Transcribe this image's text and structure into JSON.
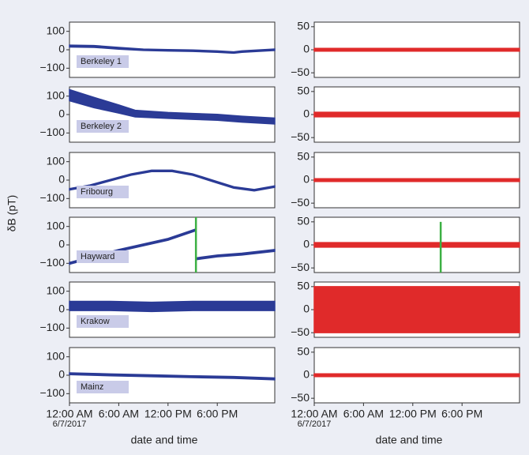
{
  "chart_data": [
    {
      "type": "line",
      "ylabel": "δB (pT)",
      "xlabel": "date and time",
      "date_note": "6/7/2017",
      "xlim": [
        0,
        25
      ],
      "xticks": [
        {
          "value": 0,
          "label": "12:00 AM"
        },
        {
          "value": 6,
          "label": "6:00 AM"
        },
        {
          "value": 12,
          "label": "12:00 PM"
        },
        {
          "value": 18,
          "label": "6:00 PM"
        }
      ],
      "ylim": [
        -150,
        150
      ],
      "yticks": [
        {
          "value": -100,
          "label": "−100"
        },
        0,
        100
      ],
      "series": [
        {
          "name": "Berkeley 1",
          "color": "#2b3b96",
          "x": [
            0,
            3,
            6,
            9,
            12,
            15,
            18,
            20,
            21,
            25
          ],
          "values": [
            20,
            18,
            8,
            0,
            -3,
            -5,
            -10,
            -15,
            -10,
            0
          ],
          "spread": [
            5,
            5,
            5,
            4,
            4,
            4,
            4,
            4,
            4,
            4
          ]
        },
        {
          "name": "Berkeley 2",
          "color": "#2b3b96",
          "x": [
            0,
            3,
            6,
            8,
            12,
            15,
            18,
            21,
            25
          ],
          "values": [
            105,
            65,
            30,
            5,
            -5,
            -10,
            -15,
            -25,
            -35
          ],
          "spread": [
            30,
            28,
            22,
            18,
            16,
            16,
            16,
            16,
            16
          ]
        },
        {
          "name": "Fribourg",
          "color": "#2b3b96",
          "x": [
            0,
            2.5,
            5,
            7.5,
            10,
            12.5,
            15,
            17.5,
            20,
            22.5,
            25
          ],
          "values": [
            -50,
            -30,
            0,
            30,
            50,
            50,
            30,
            -5,
            -40,
            -55,
            -35
          ],
          "spread": [
            4,
            4,
            4,
            4,
            4,
            4,
            4,
            4,
            4,
            4,
            4
          ]
        },
        {
          "name": "Hayward",
          "color": "#2b3b96",
          "x": [
            0,
            3,
            6,
            9,
            12,
            15.3,
            15.4,
            15.5,
            18,
            21,
            25
          ],
          "values": [
            -100,
            -65,
            -30,
            0,
            30,
            80,
            null,
            -75,
            -60,
            -50,
            -30
          ],
          "spread": [
            5,
            5,
            5,
            5,
            5,
            5,
            null,
            5,
            5,
            5,
            5
          ],
          "spike_x": 15.4,
          "spike_range": [
            -150,
            150
          ],
          "spike_color": "#3cb043"
        },
        {
          "name": "Krakow",
          "color": "#2b3b96",
          "x": [
            0,
            5,
            10,
            15,
            20,
            25
          ],
          "values": [
            20,
            20,
            15,
            20,
            20,
            20
          ],
          "spread": [
            25,
            25,
            25,
            25,
            25,
            25
          ]
        },
        {
          "name": "Mainz",
          "color": "#2b3b96",
          "x": [
            0,
            5,
            10,
            15,
            20,
            25
          ],
          "values": [
            8,
            2,
            -3,
            -8,
            -12,
            -20
          ],
          "spread": [
            5,
            5,
            5,
            5,
            5,
            5
          ]
        }
      ]
    },
    {
      "type": "line",
      "xlabel": "date and time",
      "date_note": "6/7/2017",
      "xlim": [
        0,
        25
      ],
      "xticks": [
        {
          "value": 0,
          "label": "12:00 AM"
        },
        {
          "value": 6,
          "label": "6:00 AM"
        },
        {
          "value": 12,
          "label": "12:00 PM"
        },
        {
          "value": 18,
          "label": "6:00 PM"
        }
      ],
      "ylim": [
        -60,
        60
      ],
      "yticks": [
        {
          "value": -50,
          "label": "−50"
        },
        0,
        50
      ],
      "series": [
        {
          "color": "#e02a2a",
          "x": [
            0,
            25
          ],
          "values": [
            0,
            0
          ],
          "spread": [
            3,
            3
          ]
        },
        {
          "color": "#e02a2a",
          "x": [
            0,
            25
          ],
          "values": [
            0,
            0
          ],
          "spread": [
            5,
            5
          ]
        },
        {
          "color": "#e02a2a",
          "x": [
            0,
            25
          ],
          "values": [
            0,
            0
          ],
          "spread": [
            3,
            3
          ]
        },
        {
          "color": "#e02a2a",
          "x": [
            0,
            25
          ],
          "values": [
            0,
            0
          ],
          "spread": [
            5,
            5
          ],
          "spike_x": 15.4,
          "spike_range": [
            -60,
            50
          ],
          "spike_color": "#3cb043"
        },
        {
          "color": "#e02a2a",
          "x": [
            0,
            25
          ],
          "values": [
            0,
            0
          ],
          "spread": [
            50,
            50
          ]
        },
        {
          "color": "#e02a2a",
          "x": [
            0,
            25
          ],
          "values": [
            0,
            0
          ],
          "spread": [
            3,
            3
          ]
        }
      ]
    }
  ]
}
